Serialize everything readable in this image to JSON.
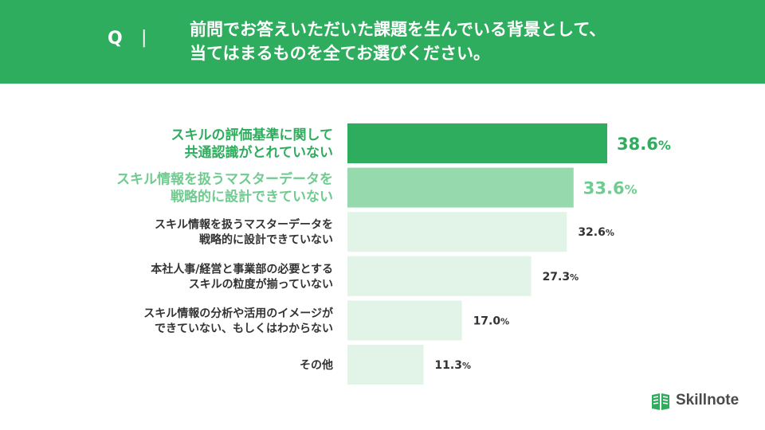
{
  "header": {
    "q_label": "Q",
    "separator": "|",
    "question_lines": [
      "前問でお答えいただいた課題を生んでいる背景として、",
      "当てはまるものを全てお選びください。"
    ]
  },
  "chart_data": {
    "type": "bar",
    "orientation": "horizontal",
    "categories": [
      [
        "スキルの評価基準に関して",
        "共通認識がとれていない"
      ],
      [
        "スキル情報を扱うマスターデータを",
        "戦略的に設計できていない"
      ],
      [
        "スキル情報を扱うマスターデータを",
        "戦略的に設計できていない"
      ],
      [
        "本社人事/経営と事業部の必要とする",
        "スキルの粒度が揃っていない"
      ],
      [
        "スキル情報の分析や活用のイメージが",
        "できていない、もしくはわからない"
      ],
      [
        "その他"
      ]
    ],
    "values": [
      38.6,
      33.6,
      32.6,
      27.3,
      17.0,
      11.3
    ],
    "value_labels": [
      "38.6",
      "33.6",
      "32.6",
      "27.3",
      "17.0",
      "11.3"
    ],
    "unit": "%",
    "xlim": [
      0,
      50
    ],
    "grid": false,
    "colors": {
      "rank1_bar": "#2fad5e",
      "rank2_bar": "#95d9ad",
      "other_bar": "#e2f3e7",
      "rank1_text": "#2fad5e",
      "rank2_text": "#6fcb8f",
      "other_text": "#333333"
    }
  },
  "brand": {
    "name": "Skillnote",
    "icon": "skillnote-logo-icon"
  }
}
